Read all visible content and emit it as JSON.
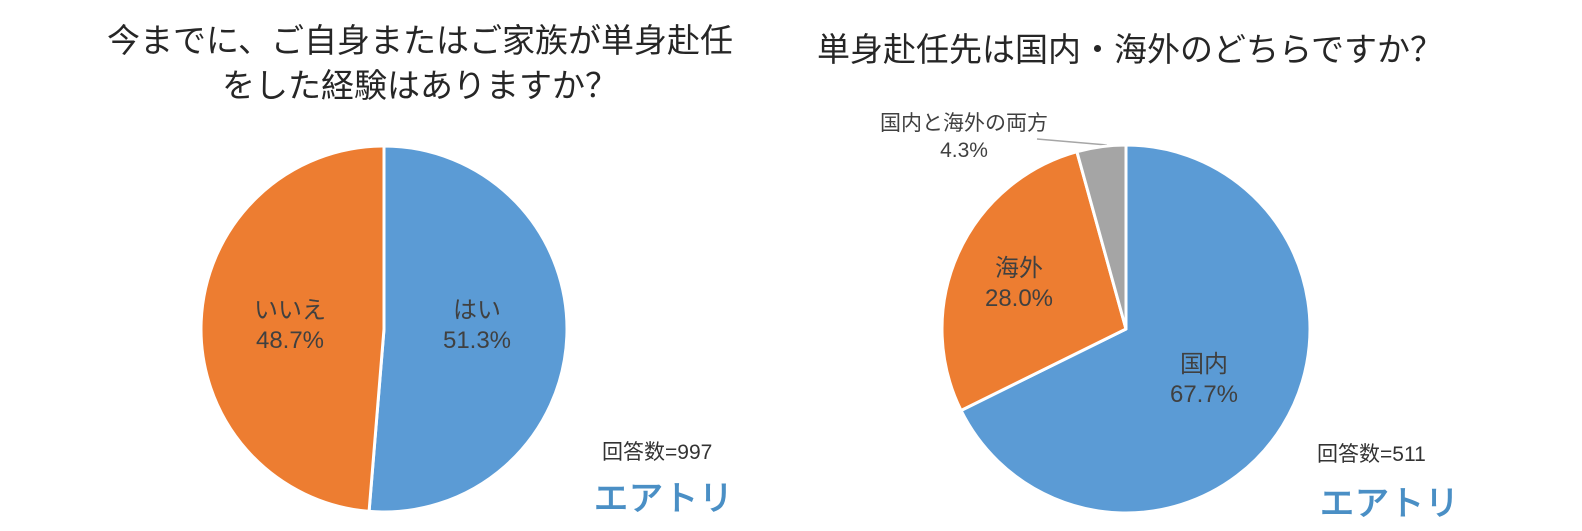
{
  "brand": {
    "logo_text": "エアトリ",
    "logo_color": "#4a8fc5"
  },
  "palette": {
    "blue": "#5b9bd5",
    "orange": "#ed7d31",
    "gray": "#a5a5a5",
    "slice_border": "#ffffff",
    "leader_line": "#a6a6a6"
  },
  "chart_data": [
    {
      "type": "pie",
      "title": "今までに、ご自身またはご家族が単身赴任をした経験はありますか？",
      "title_lines": [
        "今までに、ご自身またはご家族が単身赴任",
        "をした経験はありますか？"
      ],
      "respondents_note": "回答数=997",
      "start_angle_deg": 0,
      "direction": "clockwise",
      "legend": "none",
      "labels": [
        "はい",
        "いいえ"
      ],
      "values_pct": [
        51.3,
        48.7
      ],
      "pct_labels": [
        "51.3%",
        "48.7%"
      ],
      "colors": [
        "#5b9bd5",
        "#ed7d31"
      ]
    },
    {
      "type": "pie",
      "title": "単身赴任先は国内・海外のどちらですか？",
      "title_lines": [
        "単身赴任先は国内・海外のどちらですか？"
      ],
      "respondents_note": "回答数=511",
      "start_angle_deg": 0,
      "direction": "clockwise",
      "legend": "none",
      "labels": [
        "国内",
        "海外",
        "国内と海外の両方"
      ],
      "values_pct": [
        67.7,
        28.0,
        4.3
      ],
      "pct_labels": [
        "67.7%",
        "28.0%",
        "4.3%"
      ],
      "colors": [
        "#5b9bd5",
        "#ed7d31",
        "#a5a5a5"
      ]
    }
  ]
}
